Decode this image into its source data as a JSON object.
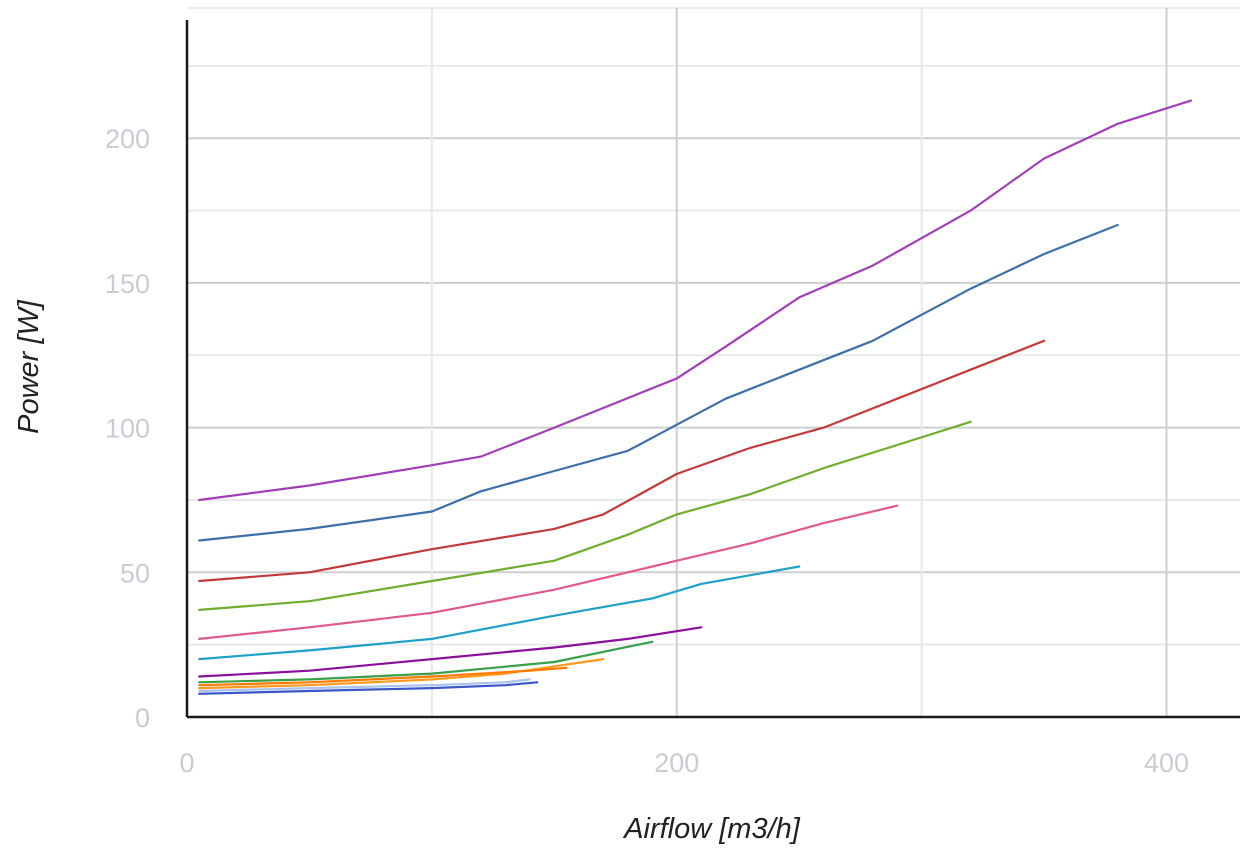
{
  "chart_data": {
    "type": "line",
    "title": "",
    "xlabel": "Airflow [m3/h]",
    "ylabel": "Power [W]",
    "xlim": [
      0,
      430
    ],
    "ylim": [
      0,
      245
    ],
    "x_ticks": [
      0,
      200,
      400
    ],
    "y_ticks": [
      0,
      50,
      100,
      150,
      200
    ],
    "x_tick_labels": [
      "0",
      "200",
      "400"
    ],
    "y_tick_labels": [
      "0",
      "50",
      "100",
      "150",
      "200"
    ],
    "grid": true,
    "legend": "none",
    "series": [
      {
        "color": "#a23fb8",
        "points": [
          [
            5,
            75
          ],
          [
            50,
            80
          ],
          [
            100,
            87
          ],
          [
            120,
            90
          ],
          [
            150,
            100
          ],
          [
            200,
            117
          ],
          [
            220,
            128
          ],
          [
            250,
            145
          ],
          [
            280,
            156
          ],
          [
            320,
            175
          ],
          [
            350,
            193
          ],
          [
            380,
            205
          ],
          [
            410,
            213
          ]
        ]
      },
      {
        "color": "#3d6fa8",
        "points": [
          [
            5,
            61
          ],
          [
            50,
            65
          ],
          [
            100,
            71
          ],
          [
            120,
            78
          ],
          [
            150,
            85
          ],
          [
            180,
            92
          ],
          [
            200,
            101
          ],
          [
            220,
            110
          ],
          [
            250,
            120
          ],
          [
            280,
            130
          ],
          [
            320,
            148
          ],
          [
            350,
            160
          ],
          [
            380,
            170
          ]
        ]
      },
      {
        "color": "#c43a3a",
        "points": [
          [
            5,
            47
          ],
          [
            50,
            50
          ],
          [
            100,
            58
          ],
          [
            150,
            65
          ],
          [
            170,
            70
          ],
          [
            200,
            84
          ],
          [
            230,
            93
          ],
          [
            260,
            100
          ],
          [
            290,
            110
          ],
          [
            320,
            120
          ],
          [
            350,
            130
          ]
        ]
      },
      {
        "color": "#6fae2e",
        "points": [
          [
            5,
            37
          ],
          [
            50,
            40
          ],
          [
            100,
            47
          ],
          [
            150,
            54
          ],
          [
            180,
            63
          ],
          [
            200,
            70
          ],
          [
            230,
            77
          ],
          [
            260,
            86
          ],
          [
            290,
            94
          ],
          [
            320,
            102
          ]
        ]
      },
      {
        "color": "#e0588c",
        "points": [
          [
            5,
            27
          ],
          [
            50,
            31
          ],
          [
            100,
            36
          ],
          [
            150,
            44
          ],
          [
            200,
            54
          ],
          [
            230,
            60
          ],
          [
            260,
            67
          ],
          [
            290,
            73
          ]
        ]
      },
      {
        "color": "#1fa0c8",
        "points": [
          [
            5,
            20
          ],
          [
            50,
            23
          ],
          [
            100,
            27
          ],
          [
            150,
            35
          ],
          [
            190,
            41
          ],
          [
            210,
            46
          ],
          [
            250,
            52
          ]
        ]
      },
      {
        "color": "#8a0f9a",
        "points": [
          [
            5,
            14
          ],
          [
            50,
            16
          ],
          [
            100,
            20
          ],
          [
            150,
            24
          ],
          [
            180,
            27
          ],
          [
            210,
            31
          ]
        ]
      },
      {
        "color": "#3aa04a",
        "points": [
          [
            5,
            12
          ],
          [
            50,
            13
          ],
          [
            100,
            15
          ],
          [
            150,
            19
          ],
          [
            190,
            26
          ]
        ]
      },
      {
        "color": "#ff9a1f",
        "points": [
          [
            5,
            10
          ],
          [
            50,
            11
          ],
          [
            100,
            13
          ],
          [
            130,
            15
          ],
          [
            170,
            20
          ]
        ]
      },
      {
        "color": "#ff7a00",
        "points": [
          [
            5,
            11
          ],
          [
            50,
            12
          ],
          [
            100,
            14
          ],
          [
            140,
            16
          ],
          [
            155,
            17
          ]
        ]
      },
      {
        "color": "#aac3ef",
        "points": [
          [
            5,
            9
          ],
          [
            50,
            10
          ],
          [
            100,
            11
          ],
          [
            130,
            12
          ],
          [
            140,
            13
          ]
        ]
      },
      {
        "color": "#3a55c8",
        "points": [
          [
            5,
            8
          ],
          [
            50,
            9
          ],
          [
            100,
            10
          ],
          [
            130,
            11
          ],
          [
            143,
            12
          ]
        ]
      }
    ]
  }
}
